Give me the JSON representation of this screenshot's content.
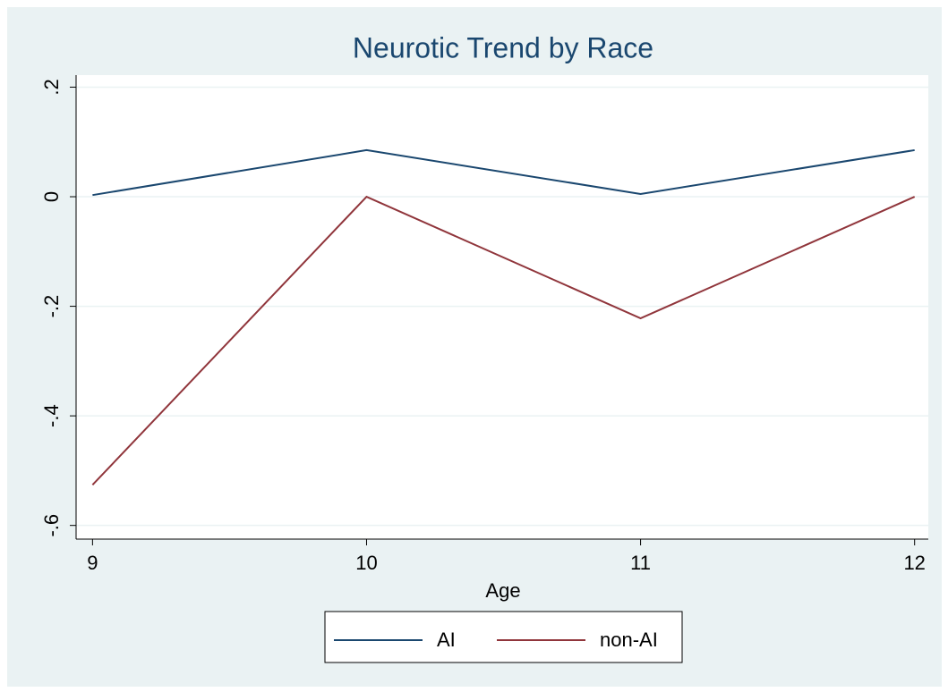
{
  "chart_data": {
    "type": "line",
    "title": "Neurotic Trend by Race",
    "x_label": "Age",
    "x": [
      9,
      10,
      11,
      12
    ],
    "series": [
      {
        "name": "AI",
        "color": "#1a476f",
        "values": [
          0.003,
          0.085,
          0.005,
          0.085
        ]
      },
      {
        "name": "non-AI",
        "color": "#90353b",
        "values": [
          -0.526,
          0,
          -0.222,
          0
        ]
      }
    ],
    "xlim": [
      8.94,
      12.05
    ],
    "xticks": [
      9,
      10,
      11,
      12
    ],
    "ylim": [
      -0.625,
      0.222
    ],
    "yticks": [
      {
        "value": 0.2,
        "label": ".2"
      },
      0,
      {
        "value": -0.2,
        "label": "-.2"
      },
      {
        "value": -0.4,
        "label": "-.4"
      },
      {
        "value": -0.6,
        "label": "-.6"
      }
    ],
    "grid": true,
    "legend": "bottom"
  }
}
